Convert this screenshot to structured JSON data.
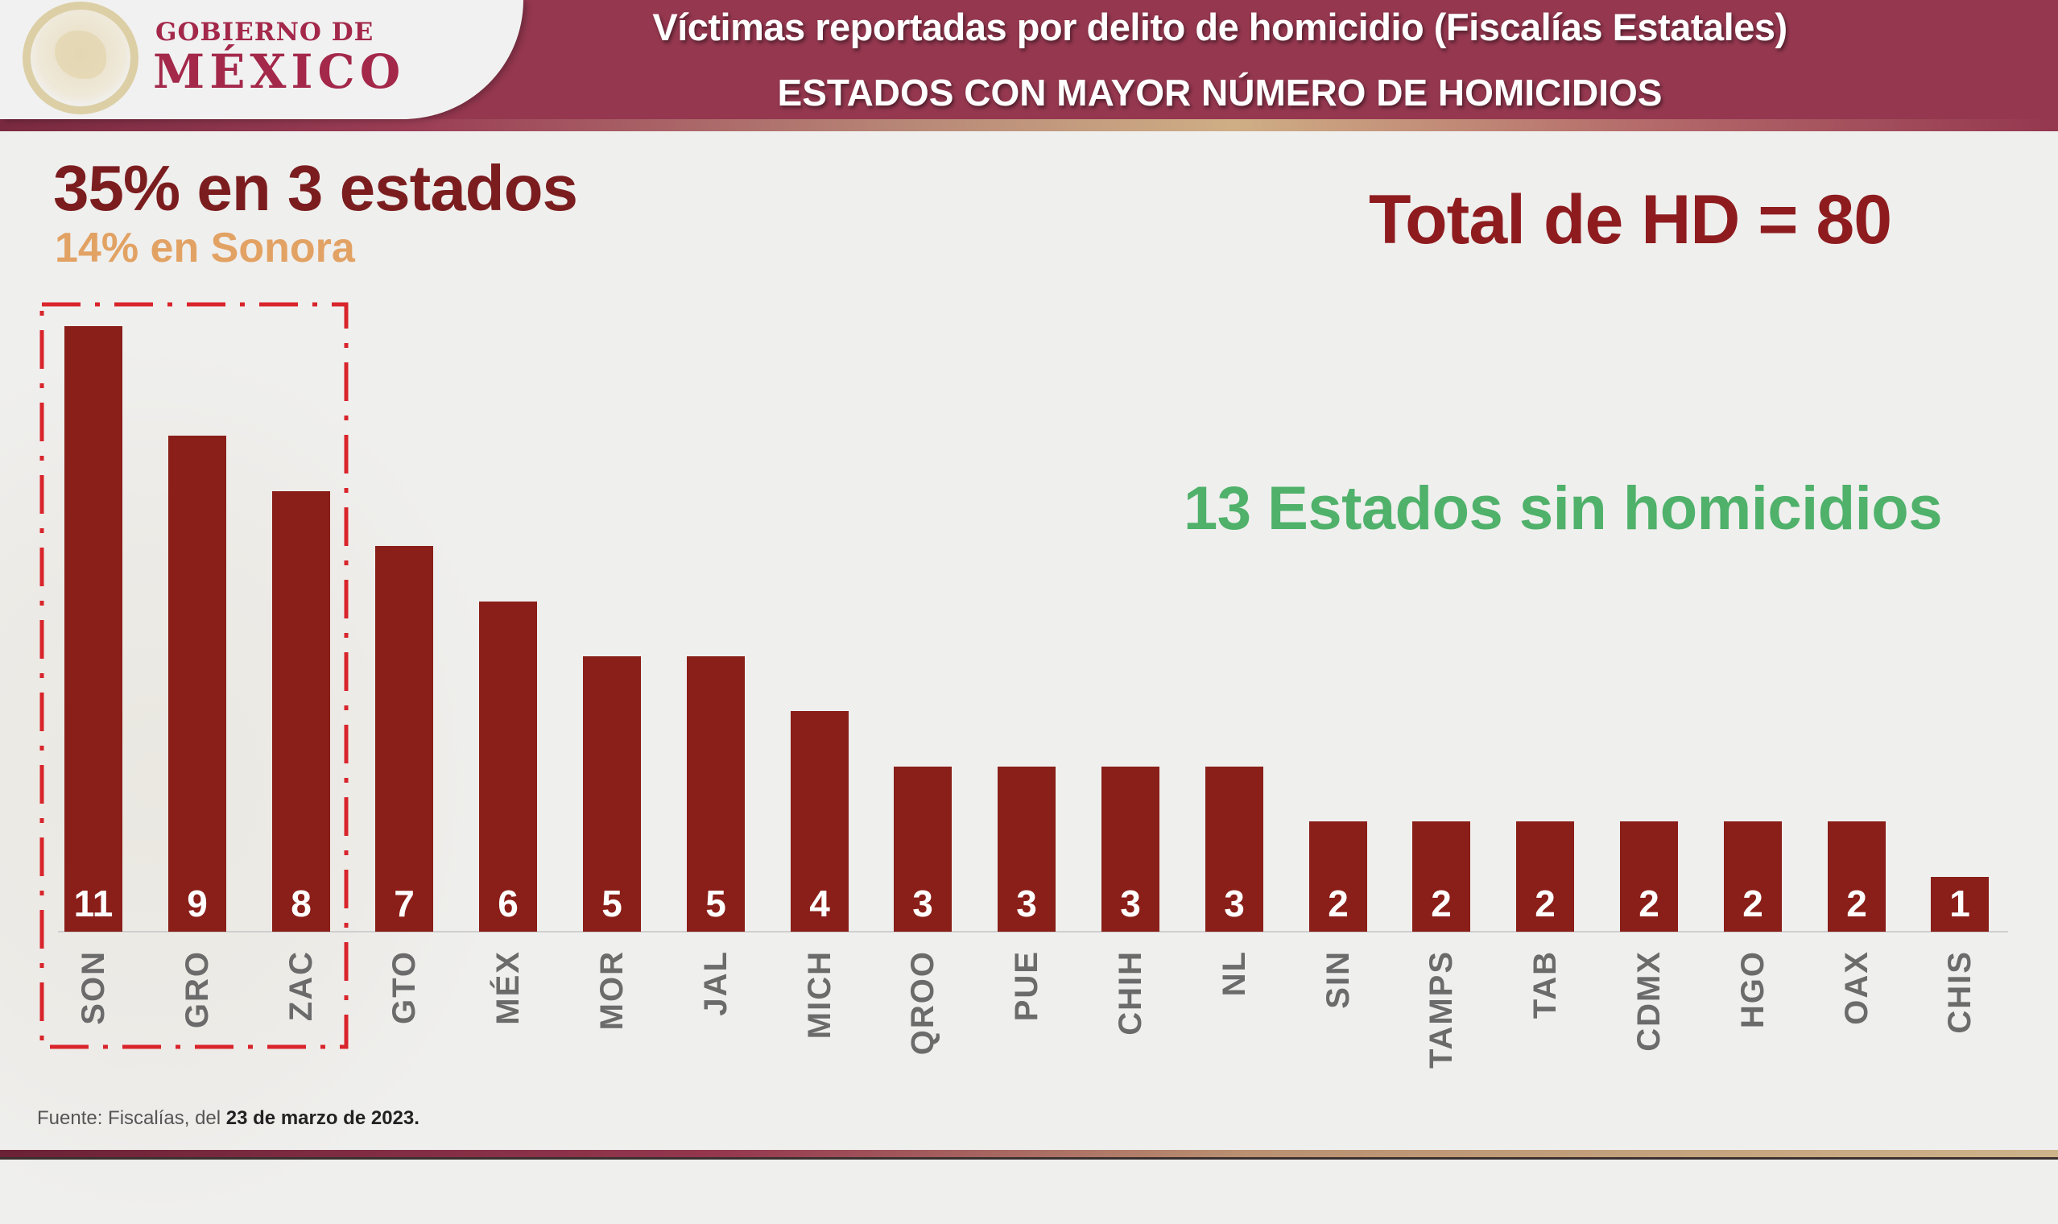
{
  "header": {
    "logo_line1": "GOBIERNO DE",
    "logo_line2": "MÉXICO",
    "title": "Víctimas reportadas por delito de homicidio (Fiscalías Estatales)",
    "subtitle": "ESTADOS CON MAYOR NÚMERO DE HOMICIDIOS"
  },
  "highlights": {
    "concentration": "35% en 3 estados",
    "top_state": "14% en Sonora",
    "total": "Total de HD = 80",
    "states_without": "13 Estados sin homicidios"
  },
  "footer": {
    "source_prefix": "Fuente: Fiscalías, del ",
    "source_date": "23 de marzo de 2023."
  },
  "colors": {
    "header_bg": "#94374f",
    "brand": "#a3284a",
    "bar": "#8a1e18",
    "headline": "#7b1d1f",
    "subheadline": "#e2a264",
    "total": "#8e1c1f",
    "positive": "#4fb16a",
    "highlight_box": "#d9242b",
    "axis_label": "#6b6b6b"
  },
  "chart_data": {
    "type": "bar",
    "title": "Víctimas reportadas por delito de homicidio (Fiscalías Estatales) — Estados con mayor número de homicidios",
    "categories": [
      "SON",
      "GRO",
      "ZAC",
      "GTO",
      "MÉX",
      "MOR",
      "JAL",
      "MICH",
      "QROO",
      "PUE",
      "CHIH",
      "NL",
      "SIN",
      "TAMPS",
      "TAB",
      "CDMX",
      "HGO",
      "OAX",
      "CHIS"
    ],
    "values": [
      11,
      9,
      8,
      7,
      6,
      5,
      5,
      4,
      3,
      3,
      3,
      3,
      2,
      2,
      2,
      2,
      2,
      2,
      1
    ],
    "value_labels": [
      "11",
      "9",
      "8",
      "7",
      "6",
      "5",
      "5",
      "4",
      "3",
      "3",
      "3",
      "3",
      "2",
      "2",
      "2",
      "2",
      "2",
      "2",
      "1"
    ],
    "xlabel": "",
    "ylabel": "",
    "ylim": [
      0,
      11
    ],
    "grid": false,
    "data_labels": "inside-bottom",
    "highlighted_categories": [
      "SON",
      "GRO",
      "ZAC"
    ],
    "annotations": [
      "35% en 3 estados",
      "14% en Sonora",
      "Total de HD = 80",
      "13 Estados sin homicidios"
    ],
    "source": "Fuente: Fiscalías, del 23 de marzo de 2023."
  }
}
